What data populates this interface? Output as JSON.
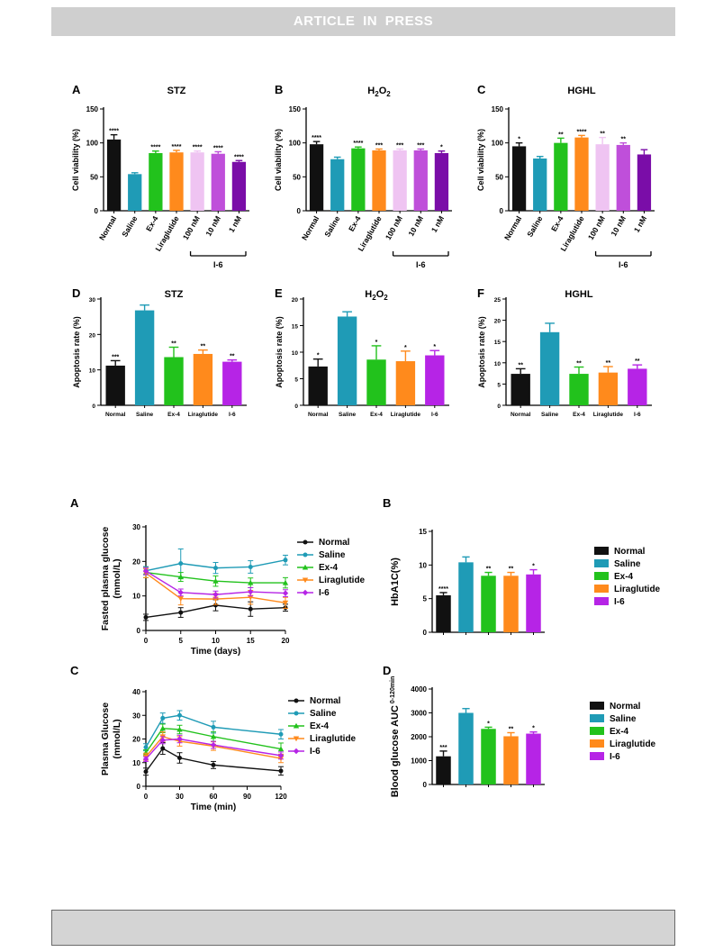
{
  "header": {
    "banner_text": "ARTICLE  IN  PRESS"
  },
  "colors": {
    "Normal": "#111111",
    "Saline": "#1f9bb6",
    "Ex-4": "#22c21c",
    "Liraglutide": "#ff8a1c",
    "100 nM": "#efc4f2",
    "10 nM": "#bf4fda",
    "1 nM": "#7a0da8",
    "I-6": "#b624e6"
  },
  "chart_data": [
    {
      "id": "fig1-A",
      "type": "bar",
      "panel_label": "A",
      "title": "STZ",
      "ylabel": "Cell viability (%)",
      "ylim": [
        0,
        150
      ],
      "yticks": [
        "0",
        "50",
        "100",
        "150"
      ],
      "categories": [
        "Normal",
        "Saline",
        "Ex-4",
        "Liraglutide",
        "100 nM",
        "10 nM",
        "1 nM"
      ],
      "values": [
        105,
        54,
        85,
        86,
        86,
        84,
        72
      ],
      "errors": [
        7,
        2,
        3,
        3,
        2,
        3,
        2
      ],
      "significance": [
        "****",
        "",
        "****",
        "****",
        "****",
        "****",
        "****"
      ],
      "group_label": "I-6"
    },
    {
      "id": "fig1-B",
      "type": "bar",
      "panel_label": "B",
      "title": "H2O2",
      "ylabel": "Cell viability (%)",
      "ylim": [
        0,
        150
      ],
      "yticks": [
        "0",
        "50",
        "100",
        "150"
      ],
      "categories": [
        "Normal",
        "Saline",
        "Ex-4",
        "Liraglutide",
        "100 nM",
        "10 nM",
        "1 nM"
      ],
      "values": [
        98,
        76,
        92,
        89,
        89,
        89,
        85
      ],
      "errors": [
        4,
        3,
        2,
        2,
        2,
        2,
        3
      ],
      "significance": [
        "****",
        "",
        "****",
        "***",
        "***",
        "***",
        "*"
      ],
      "group_label": "I-6"
    },
    {
      "id": "fig1-C",
      "type": "bar",
      "panel_label": "C",
      "title": "HGHL",
      "ylabel": "Cell viability (%)",
      "ylim": [
        0,
        150
      ],
      "yticks": [
        "0",
        "50",
        "100",
        "150"
      ],
      "categories": [
        "Normal",
        "Saline",
        "Ex-4",
        "Liraglutide",
        "100 nM",
        "10 nM",
        "1 nM"
      ],
      "values": [
        95,
        77,
        100,
        108,
        98,
        97,
        83
      ],
      "errors": [
        5,
        3,
        7,
        3,
        10,
        3,
        7
      ],
      "significance": [
        "*",
        "",
        "**",
        "****",
        "**",
        "**",
        ""
      ],
      "group_label": "I-6"
    },
    {
      "id": "fig1-D",
      "type": "bar",
      "panel_label": "D",
      "title": "STZ",
      "ylabel": "Apoptosis rate (%)",
      "ylim": [
        0,
        30
      ],
      "yticks": [
        "0",
        "10",
        "20",
        "30"
      ],
      "categories": [
        "Normal",
        "Saline",
        "Ex-4",
        "Liraglutide",
        "I-6"
      ],
      "values": [
        11.2,
        26.8,
        13.6,
        14.5,
        12.3
      ],
      "errors": [
        1.4,
        1.5,
        2.8,
        1.1,
        0.5
      ],
      "significance": [
        "***",
        "",
        "**",
        "**",
        "**"
      ]
    },
    {
      "id": "fig1-E",
      "type": "bar",
      "panel_label": "E",
      "title": "H2O2",
      "ylabel": "Apoptosis rate (%)",
      "ylim": [
        0,
        20
      ],
      "yticks": [
        "0",
        "5",
        "10",
        "15",
        "20"
      ],
      "categories": [
        "Normal",
        "Saline",
        "Ex-4",
        "Liraglutide",
        "I-6"
      ],
      "values": [
        7.3,
        16.7,
        8.6,
        8.3,
        9.4
      ],
      "errors": [
        1.4,
        0.9,
        2.6,
        1.9,
        0.9
      ],
      "significance": [
        "*",
        "",
        "*",
        "*",
        "*"
      ]
    },
    {
      "id": "fig1-F",
      "type": "bar",
      "panel_label": "F",
      "title": "HGHL",
      "ylabel": "Apoptosis rate (%)",
      "ylim": [
        0,
        25
      ],
      "yticks": [
        "0",
        "5",
        "10",
        "15",
        "20",
        "25"
      ],
      "categories": [
        "Normal",
        "Saline",
        "Ex-4",
        "Liraglutide",
        "I-6"
      ],
      "values": [
        7.4,
        17.2,
        7.4,
        7.7,
        8.6
      ],
      "errors": [
        1.2,
        2.1,
        1.6,
        1.4,
        0.9
      ],
      "significance": [
        "**",
        "",
        "**",
        "**",
        "**"
      ]
    },
    {
      "id": "fig2-A",
      "type": "line",
      "panel_label": "A",
      "xlabel": "Time (days)",
      "ylabel": "Fasted plasma glucose (mmol/L)",
      "xlim": [
        0,
        20
      ],
      "ylim": [
        0,
        30
      ],
      "xticks": [
        "0",
        "5",
        "10",
        "15",
        "20"
      ],
      "yticks": [
        "0",
        "10",
        "20",
        "30"
      ],
      "x": [
        0,
        5,
        10,
        15,
        20
      ],
      "series": [
        {
          "name": "Normal",
          "marker": "dot",
          "values": [
            3.8,
            5.2,
            7.3,
            6.2,
            6.6
          ],
          "errors": [
            0.9,
            1.4,
            1.6,
            2.1,
            1.0
          ]
        },
        {
          "name": "Saline",
          "marker": "dot",
          "values": [
            17.3,
            19.4,
            18.1,
            18.4,
            20.4
          ],
          "errors": [
            1.2,
            4.2,
            1.6,
            1.8,
            1.4
          ]
        },
        {
          "name": "Ex-4",
          "marker": "triangle-up",
          "values": [
            16.8,
            15.5,
            14.3,
            13.8,
            13.8
          ],
          "errors": [
            1.5,
            1.3,
            1.5,
            1.4,
            1.5
          ]
        },
        {
          "name": "Liraglutide",
          "marker": "triangle-down",
          "values": [
            16.6,
            9.2,
            9.1,
            9.6,
            8.0
          ],
          "errors": [
            1.3,
            1.8,
            1.6,
            2.0,
            1.6
          ]
        },
        {
          "name": "I-6",
          "marker": "diamond",
          "values": [
            17.2,
            11.0,
            10.4,
            11.2,
            10.8
          ],
          "errors": [
            1.0,
            1.0,
            1.0,
            1.2,
            1.0
          ]
        }
      ]
    },
    {
      "id": "fig2-B",
      "type": "bar",
      "panel_label": "B",
      "ylabel": "HbA1C(%)",
      "ylim": [
        0,
        15
      ],
      "yticks": [
        "0",
        "5",
        "10",
        "15"
      ],
      "categories": [
        "Normal",
        "Saline",
        "Ex-4",
        "Liraglutide",
        "I-6"
      ],
      "values": [
        5.5,
        10.4,
        8.4,
        8.4,
        8.6
      ],
      "errors": [
        0.4,
        0.8,
        0.5,
        0.5,
        0.7
      ],
      "significance": [
        "****",
        "",
        "**",
        "**",
        "*"
      ],
      "legend": "right"
    },
    {
      "id": "fig2-C",
      "type": "line",
      "panel_label": "C",
      "xlabel": "Time (min)",
      "ylabel": "Plasma Glucose (mmol/L)",
      "xlim": [
        0,
        120
      ],
      "ylim": [
        0,
        40
      ],
      "xticks": [
        "0",
        "30",
        "60",
        "90",
        "120"
      ],
      "yticks": [
        "0",
        "10",
        "20",
        "30",
        "40"
      ],
      "x": [
        0,
        15,
        30,
        60,
        120
      ],
      "series": [
        {
          "name": "Normal",
          "marker": "dot",
          "values": [
            6.2,
            16.0,
            12.0,
            9.0,
            6.5
          ],
          "errors": [
            1.5,
            2.5,
            2.2,
            1.5,
            1.8
          ]
        },
        {
          "name": "Saline",
          "marker": "dot",
          "values": [
            16.5,
            28.8,
            30.0,
            25.0,
            22.0
          ],
          "errors": [
            1.5,
            2.2,
            2.0,
            2.5,
            2.0
          ]
        },
        {
          "name": "Ex-4",
          "marker": "triangle-up",
          "values": [
            14.2,
            24.5,
            24.0,
            21.0,
            15.8
          ],
          "errors": [
            1.2,
            1.8,
            1.8,
            2.0,
            2.5
          ]
        },
        {
          "name": "Liraglutide",
          "marker": "triangle-down",
          "values": [
            12.5,
            21.0,
            19.0,
            17.0,
            11.8
          ],
          "errors": [
            1.5,
            2.0,
            2.0,
            1.8,
            1.8
          ]
        },
        {
          "name": "I-6",
          "marker": "diamond",
          "values": [
            11.5,
            19.5,
            20.0,
            17.5,
            13.0
          ],
          "errors": [
            1.0,
            1.5,
            1.6,
            1.5,
            1.5
          ]
        }
      ]
    },
    {
      "id": "fig2-D",
      "type": "bar",
      "panel_label": "D",
      "ylabel": "Blood glucose AUC",
      "ylabel_sub": "0-120min",
      "ylim": [
        0,
        4000
      ],
      "yticks": [
        "0",
        "1000",
        "2000",
        "3000",
        "4000"
      ],
      "categories": [
        "Normal",
        "Saline",
        "Ex-4",
        "Liraglutide",
        "I-6"
      ],
      "values": [
        1180,
        3000,
        2330,
        2020,
        2130
      ],
      "errors": [
        220,
        180,
        70,
        150,
        70
      ],
      "significance": [
        "***",
        "",
        "*",
        "**",
        "*"
      ],
      "legend": "right"
    }
  ]
}
